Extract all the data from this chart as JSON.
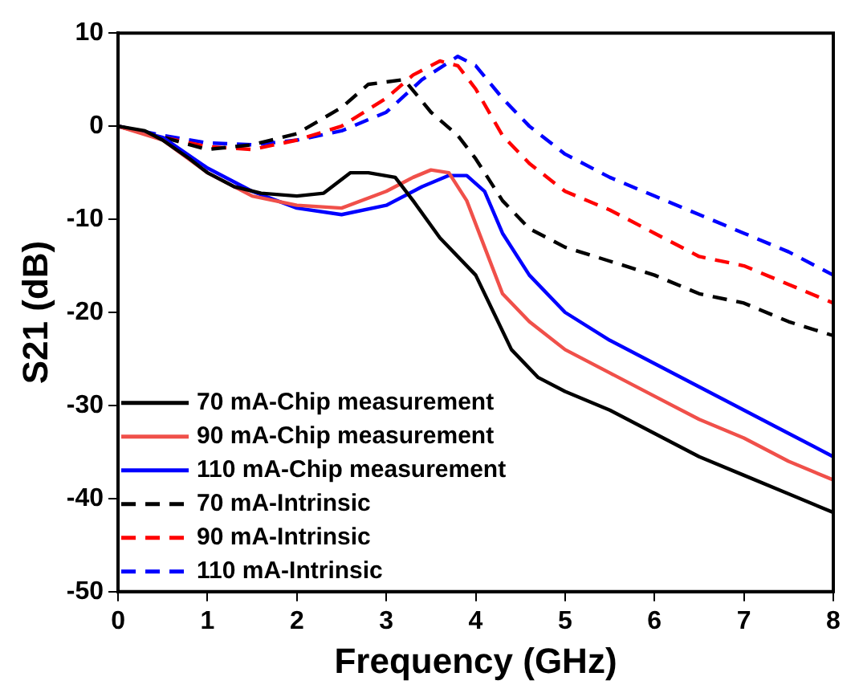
{
  "chart_data": {
    "type": "line",
    "xlabel": "Frequency (GHz)",
    "ylabel": "S21 (dB)",
    "xlim": [
      0,
      8
    ],
    "xticks": [
      0,
      1,
      2,
      3,
      4,
      5,
      6,
      7,
      8
    ],
    "ylim": [
      -50,
      10
    ],
    "yticks": [
      -50,
      -40,
      -30,
      -20,
      -10,
      0,
      10
    ],
    "grid": false,
    "legend": "bottom left",
    "marker": "none",
    "series": [
      {
        "name": "70 mA-Chip measurement",
        "color": "#000000",
        "line_style": "solid",
        "x": [
          0,
          0.3,
          0.5,
          0.8,
          1,
          1.3,
          1.6,
          2,
          2.3,
          2.6,
          2.8,
          3.1,
          3.3,
          3.6,
          4,
          4.2,
          4.4,
          4.7,
          5,
          5.5,
          6,
          6.5,
          7,
          7.5,
          8
        ],
        "values": [
          0,
          -0.5,
          -1.5,
          -3.5,
          -5,
          -6.5,
          -7.2,
          -7.5,
          -7.2,
          -5,
          -5,
          -5.5,
          -8,
          -12,
          -16,
          -20,
          -24,
          -27,
          -28.5,
          -30.5,
          -33,
          -35.5,
          -37.5,
          -39.5,
          -41.5
        ]
      },
      {
        "name": "90 mA-Chip measurement",
        "color": "#f0504a",
        "line_style": "solid",
        "x": [
          0,
          0.5,
          1,
          1.5,
          2,
          2.5,
          3,
          3.3,
          3.5,
          3.7,
          3.9,
          4.1,
          4.3,
          4.6,
          5,
          5.5,
          6,
          6.5,
          7,
          7.5,
          8
        ],
        "values": [
          0,
          -1.5,
          -5,
          -7.5,
          -8.5,
          -8.8,
          -7,
          -5.5,
          -4.7,
          -5,
          -8,
          -13,
          -18,
          -21,
          -24,
          -26.5,
          -29,
          -31.5,
          -33.5,
          -36,
          -38
        ]
      },
      {
        "name": "110 mA-Chip measurement",
        "color": "#0000ff",
        "line_style": "solid",
        "x": [
          0,
          0.5,
          1,
          1.5,
          2,
          2.5,
          3,
          3.4,
          3.7,
          3.9,
          4.1,
          4.3,
          4.6,
          5,
          5.5,
          6,
          6.5,
          7,
          7.5,
          8
        ],
        "values": [
          0,
          -1.2,
          -4.5,
          -7,
          -8.8,
          -9.5,
          -8.5,
          -6.5,
          -5.3,
          -5.3,
          -7,
          -11.5,
          -16,
          -20,
          -23,
          -25.5,
          -28,
          -30.5,
          -33,
          -35.5
        ]
      },
      {
        "name": "70 mA-Intrinsic",
        "color": "#000000",
        "line_style": "dashed",
        "x": [
          0,
          0.5,
          1,
          1.5,
          2,
          2.5,
          2.8,
          3.2,
          3.5,
          3.8,
          4,
          4.3,
          4.6,
          5,
          5.5,
          6,
          6.5,
          7,
          7.5,
          8
        ],
        "values": [
          0,
          -1.2,
          -2.5,
          -2,
          -0.8,
          2,
          4.5,
          5,
          1.5,
          -1,
          -3.5,
          -8,
          -11,
          -13,
          -14.5,
          -16,
          -18,
          -19,
          -21,
          -22.5
        ]
      },
      {
        "name": "90 mA-Intrinsic",
        "color": "#ff0000",
        "line_style": "dashed",
        "x": [
          0,
          0.5,
          1,
          1.5,
          2,
          2.5,
          3,
          3.3,
          3.6,
          3.8,
          4,
          4.3,
          4.6,
          5,
          5.5,
          6,
          6.5,
          7,
          7.5,
          8
        ],
        "values": [
          0,
          -1.2,
          -2.2,
          -2.5,
          -1.5,
          0,
          3,
          5.5,
          7,
          6.5,
          4,
          -1,
          -4,
          -7,
          -9,
          -11.5,
          -14,
          -15,
          -17,
          -19
        ]
      },
      {
        "name": "110 mA-Intrinsic",
        "color": "#0000ff",
        "line_style": "dashed",
        "x": [
          0,
          0.5,
          1,
          1.5,
          2,
          2.5,
          3,
          3.4,
          3.8,
          4,
          4.3,
          4.6,
          5,
          5.5,
          6,
          6.5,
          7,
          7.5,
          8
        ],
        "values": [
          0,
          -1,
          -1.8,
          -2,
          -1.5,
          -0.5,
          1.5,
          5,
          7.5,
          6.5,
          3,
          0,
          -3,
          -5.5,
          -7.5,
          -9.5,
          -11.5,
          -13.5,
          -16
        ]
      }
    ]
  }
}
